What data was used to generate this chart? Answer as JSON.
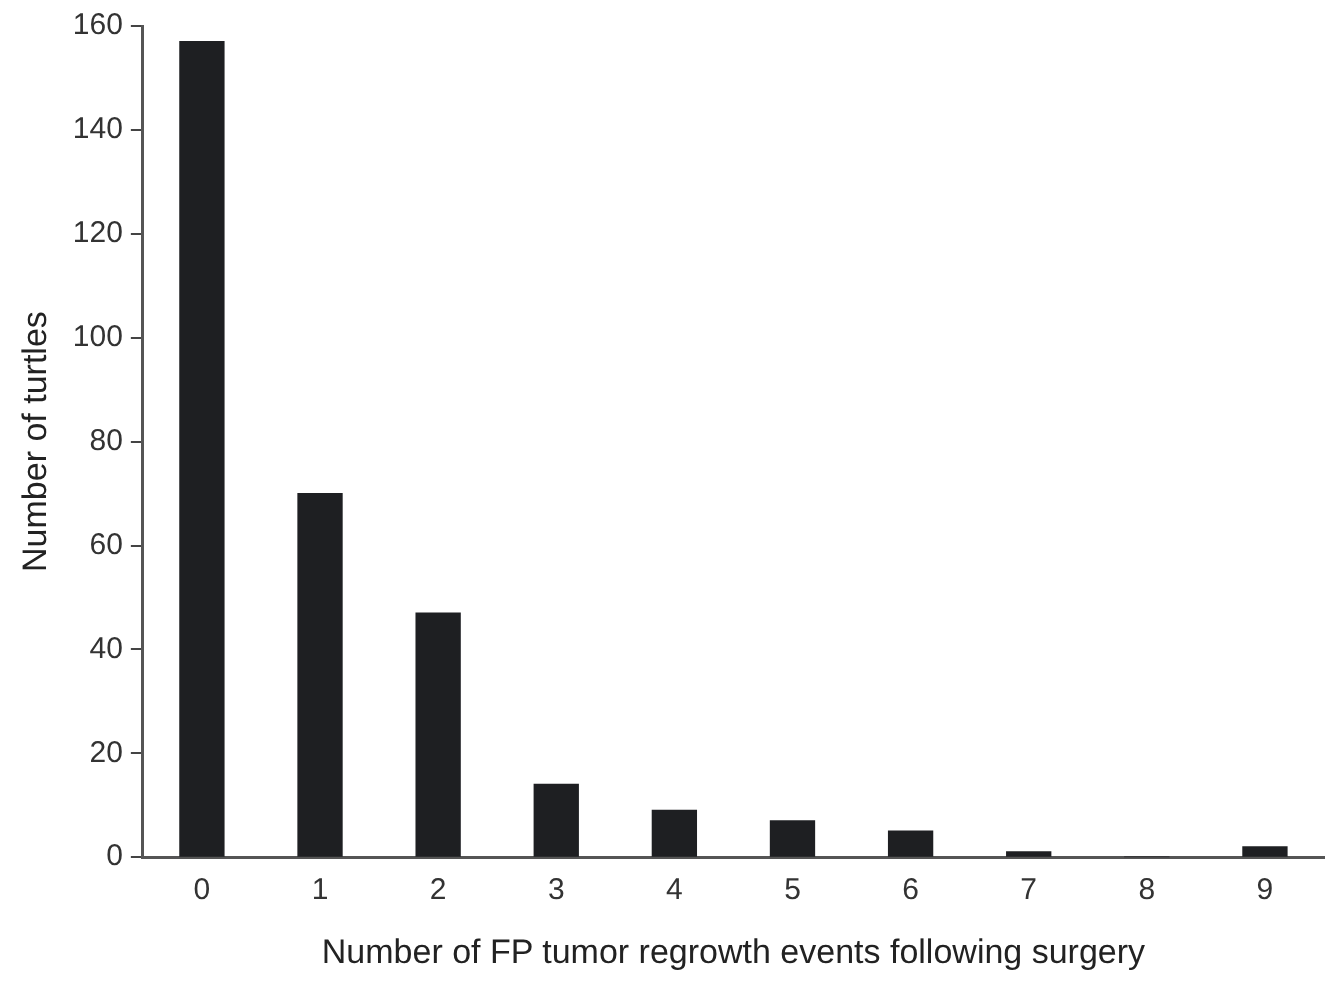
{
  "chart_data": {
    "type": "bar",
    "xlabel": "Number of FP tumor regrowth events following surgery",
    "ylabel": "Number of turtles",
    "categories": [
      "0",
      "1",
      "2",
      "3",
      "4",
      "5",
      "6",
      "7",
      "8",
      "9"
    ],
    "values": [
      157,
      70,
      47,
      14,
      9,
      7,
      5,
      1,
      0,
      2
    ],
    "color": "#1e1f22",
    "ylim": [
      0,
      160
    ],
    "yticks": [
      0,
      20,
      40,
      60,
      80,
      100,
      120,
      140,
      160
    ],
    "grid": false,
    "legend": false
  }
}
